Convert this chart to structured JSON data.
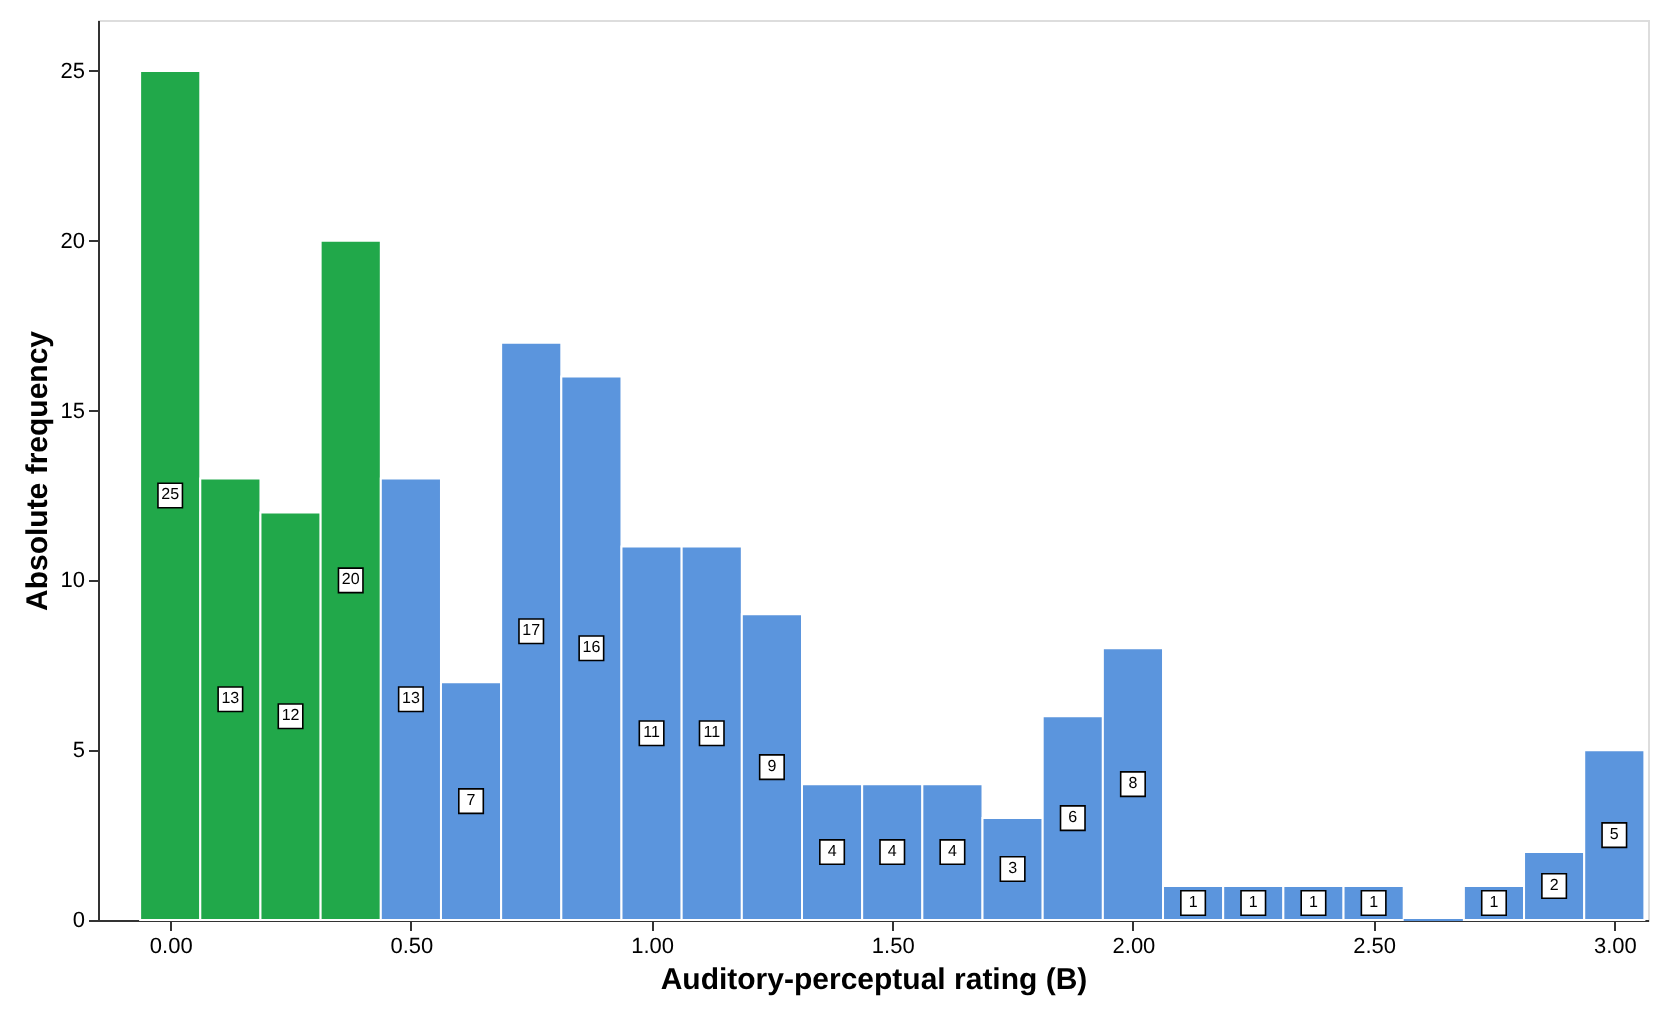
{
  "chart_data": {
    "type": "histogram",
    "xlabel": "Auditory-perceptual rating (B)",
    "ylabel": "Absolute frequency",
    "bins": [
      -0.0625,
      0.0625,
      0.1875,
      0.3125,
      0.4375,
      0.5625,
      0.6875,
      0.8125,
      0.9375,
      1.0625,
      1.1875,
      1.3125,
      1.4375,
      1.5625,
      1.6875,
      1.8125,
      1.9375,
      2.0625,
      2.1875,
      2.3125,
      2.4375,
      2.5625,
      2.6875,
      2.8125,
      2.9375,
      3.0625
    ],
    "values": [
      25,
      13,
      12,
      20,
      13,
      7,
      17,
      16,
      11,
      11,
      9,
      4,
      4,
      4,
      3,
      6,
      8,
      1,
      1,
      1,
      1,
      0,
      1,
      2,
      5
    ],
    "colors": [
      "#21a84a",
      "#21a84a",
      "#21a84a",
      "#21a84a",
      "#5b95dd",
      "#5b95dd",
      "#5b95dd",
      "#5b95dd",
      "#5b95dd",
      "#5b95dd",
      "#5b95dd",
      "#5b95dd",
      "#5b95dd",
      "#5b95dd",
      "#5b95dd",
      "#5b95dd",
      "#5b95dd",
      "#5b95dd",
      "#5b95dd",
      "#5b95dd",
      "#5b95dd",
      "#5b95dd",
      "#5b95dd",
      "#5b95dd",
      "#5b95dd"
    ],
    "value_labels": [
      "25",
      "13",
      "12",
      "20",
      "13",
      "7",
      "17",
      "16",
      "11",
      "11",
      "9",
      "4",
      "4",
      "4",
      "3",
      "6",
      "8",
      "1",
      "1",
      "1",
      "1",
      null,
      "1",
      "2",
      "5"
    ],
    "grid": false,
    "xlim": [
      -0.15,
      3.07
    ],
    "xticks": [
      {
        "value": 0,
        "label": "0.00"
      },
      {
        "value": 0.5,
        "label": "0.50"
      },
      {
        "value": 1,
        "label": "1.00"
      },
      {
        "value": 1.5,
        "label": "1.50"
      },
      {
        "value": 2,
        "label": "2.00"
      },
      {
        "value": 2.5,
        "label": "2.50"
      },
      {
        "value": 3,
        "label": "3.00"
      }
    ],
    "ylim": [
      0,
      26.5
    ],
    "yticks": [
      0,
      5,
      10,
      15,
      20,
      25
    ]
  }
}
